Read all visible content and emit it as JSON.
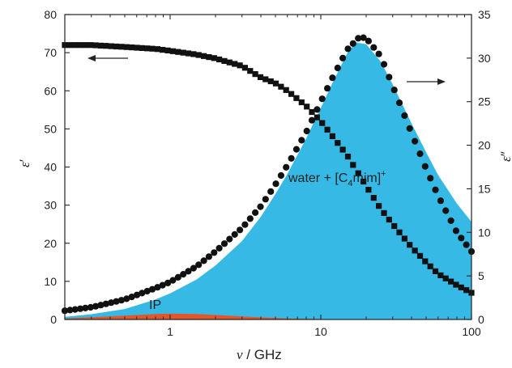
{
  "chart_data": {
    "type": "scatter",
    "x_scale": "log",
    "xlim": [
      0.2,
      100
    ],
    "ylim_left": [
      0,
      80
    ],
    "ylim_right": [
      0,
      35
    ],
    "grid": false,
    "xlabel": {
      "symbol": "ν",
      "text": " / GHz"
    },
    "ylabel_left": {
      "symbol": "ε",
      "prime": "′"
    },
    "ylabel_right": {
      "symbol": "ε",
      "prime": "″"
    },
    "x_ticks": [
      {
        "value": 1,
        "label": "1"
      },
      {
        "value": 10,
        "label": "10"
      },
      {
        "value": 100,
        "label": "100"
      }
    ],
    "y_left_ticks": [
      0,
      10,
      20,
      30,
      40,
      50,
      60,
      70,
      80
    ],
    "y_right_ticks": [
      0,
      5,
      10,
      15,
      20,
      25,
      30,
      35
    ],
    "annotations": {
      "water": {
        "prefix": "water + [C",
        "sub": "4",
        "mid": "mim]",
        "sup": "+"
      },
      "ip": "IP"
    },
    "colors": {
      "water_area": "#37b9e6",
      "ip_area": "#e2562a",
      "markers": "#111111",
      "axes": "#222222"
    },
    "series": [
      {
        "axis": "left",
        "marker": "square",
        "x": [
          0.2,
          0.3,
          0.5,
          0.8,
          1,
          1.5,
          2,
          3,
          4,
          5,
          6,
          8,
          10,
          12,
          15,
          20,
          25,
          30,
          40,
          50,
          60,
          80,
          100
        ],
        "y": [
          72,
          72,
          71.5,
          71,
          70.5,
          69.5,
          68.5,
          66.5,
          63.5,
          62,
          60,
          56,
          52,
          48,
          43,
          35,
          29,
          25,
          19,
          15,
          12,
          9,
          7
        ]
      },
      {
        "axis": "right",
        "marker": "circle",
        "x": [
          0.2,
          0.3,
          0.5,
          0.8,
          1,
          1.5,
          2,
          3,
          4,
          5,
          6,
          8,
          10,
          12,
          15,
          18,
          20,
          25,
          30,
          40,
          50,
          60,
          80,
          100
        ],
        "y": [
          1,
          1.4,
          2.3,
          3.6,
          4.3,
          6.1,
          7.8,
          10.5,
          13,
          15.5,
          17.7,
          21.5,
          25,
          27.8,
          31,
          32.4,
          32.3,
          30.2,
          26.8,
          21.4,
          17.3,
          14.2,
          10,
          7.8
        ]
      }
    ],
    "areas": [
      {
        "name": "water + [C4mim]+",
        "axis": "right",
        "x": [
          0.2,
          0.3,
          0.5,
          0.8,
          1,
          1.5,
          2,
          3,
          4,
          5,
          6,
          8,
          10,
          12,
          15,
          17,
          20,
          25,
          30,
          40,
          50,
          60,
          80,
          100
        ],
        "y": [
          0.3,
          0.6,
          1.2,
          2.3,
          3,
          4.6,
          6.2,
          9,
          11.8,
          14.4,
          16.7,
          20.8,
          24.3,
          27.2,
          30.6,
          31.8,
          31.6,
          29.6,
          27,
          22.5,
          19.2,
          16.6,
          13.3,
          11.2
        ]
      },
      {
        "name": "IP",
        "axis": "right",
        "x": [
          0.2,
          0.3,
          0.5,
          0.8,
          1,
          1.5,
          2,
          3,
          4,
          6,
          8,
          10,
          20,
          50,
          100
        ],
        "y": [
          0.1,
          0.25,
          0.45,
          0.62,
          0.68,
          0.62,
          0.52,
          0.35,
          0.24,
          0.12,
          0.07,
          0.05,
          0.02,
          0.01,
          0.0
        ]
      }
    ]
  }
}
